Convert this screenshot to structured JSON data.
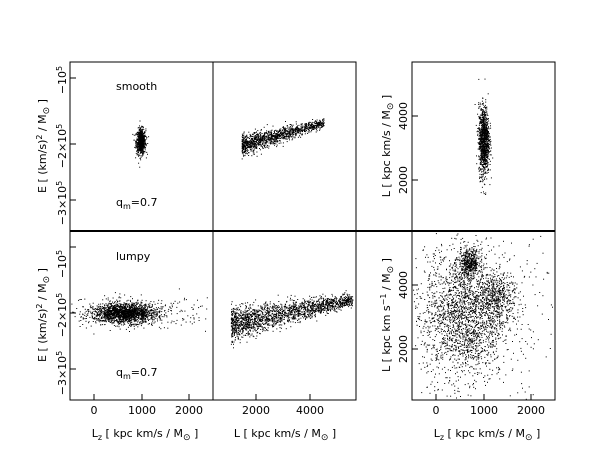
{
  "chart_data": [
    {
      "type": "scatter",
      "panel": "top-left",
      "annotation_top": "smooth",
      "annotation_bottom": "q_m=0.7",
      "x_ticks": [],
      "y_ticks": [
        "-10^5",
        "-2x10^5",
        "-3x10^5"
      ],
      "ylabel": "E  [ (km/s)^2 / M_sun ]",
      "xlim": [
        -500,
        2500
      ],
      "ylim": [
        -370000,
        -50000
      ],
      "clusters": [
        {
          "cx": 980,
          "cy": -200000,
          "sx": 50,
          "sy": 12000,
          "n": 700,
          "shape": "blob"
        }
      ]
    },
    {
      "type": "scatter",
      "panel": "top-middle",
      "x_ticks": [],
      "y_ticks": [],
      "xlim": [
        1000,
        5000
      ],
      "ylim": [
        -370000,
        -50000
      ],
      "clusters": [
        {
          "x0": 1800,
          "x1": 4100,
          "y0": -207000,
          "y1": -165000,
          "thick": 9000,
          "n": 1300,
          "shape": "wedge"
        }
      ]
    },
    {
      "type": "scatter",
      "panel": "top-right",
      "x_ticks": [],
      "y_ticks": [
        "2000",
        "4000"
      ],
      "ylabel": "L  [ kpc km/s / M_sun ]",
      "xlim": [
        -500,
        2500
      ],
      "ylim": [
        200,
        5600
      ],
      "clusters": [
        {
          "cx": 1000,
          "cy": 3100,
          "sx": 55,
          "sy": 550,
          "n": 1100,
          "shape": "blob"
        }
      ]
    },
    {
      "type": "scatter",
      "panel": "bottom-left",
      "annotation_top": "lumpy",
      "annotation_bottom": "q_m=0.7",
      "x_ticks": [
        "0",
        "1000",
        "2000"
      ],
      "y_ticks": [
        "-10^5",
        "-2x10^5",
        "-3x10^5"
      ],
      "xlabel": "L_z  [ kpc km/s / M_sun ]",
      "ylabel": "E  [ (km/s)^2 / M_sun ]",
      "xlim": [
        -500,
        2500
      ],
      "ylim": [
        -370000,
        -50000
      ],
      "clusters": [
        {
          "cx": 650,
          "cy": -205000,
          "sx": 320,
          "sy": 9000,
          "n": 1700,
          "shape": "blob"
        },
        {
          "cx": 700,
          "cy": -205000,
          "sx": 900,
          "sy": 14000,
          "n": 350,
          "shape": "blob"
        }
      ]
    },
    {
      "type": "scatter",
      "panel": "bottom-middle",
      "x_ticks": [
        "2000",
        "4000"
      ],
      "y_ticks": [],
      "xlabel": "L  [ kpc km/s / M_sun ]",
      "xlim": [
        1000,
        5000
      ],
      "ylim": [
        -370000,
        -50000
      ],
      "clusters": [
        {
          "x0": 1500,
          "x1": 4900,
          "y0": -225000,
          "y1": -180000,
          "thick": 14000,
          "n": 1900,
          "shape": "wedge"
        }
      ]
    },
    {
      "type": "scatter",
      "panel": "bottom-right",
      "x_ticks": [
        "0",
        "1000",
        "2000"
      ],
      "y_ticks": [
        "2000",
        "4000"
      ],
      "xlabel": "L_z  [ kpc km/s / M_sun ]",
      "ylabel": "L  [ kpc km s^-1 / M_sun ]",
      "xlim": [
        -500,
        2500
      ],
      "ylim": [
        200,
        5600
      ],
      "clusters": [
        {
          "cx": 600,
          "cy": 2900,
          "sx": 420,
          "sy": 1000,
          "n": 1900,
          "shape": "blob"
        },
        {
          "cx": 700,
          "cy": 4600,
          "sx": 110,
          "sy": 220,
          "n": 450,
          "shape": "blob"
        },
        {
          "cx": 1300,
          "cy": 3500,
          "sx": 180,
          "sy": 350,
          "n": 400,
          "shape": "blob"
        },
        {
          "cx": 800,
          "cy": 3100,
          "sx": 900,
          "sy": 1500,
          "n": 450,
          "shape": "blob"
        }
      ]
    }
  ]
}
